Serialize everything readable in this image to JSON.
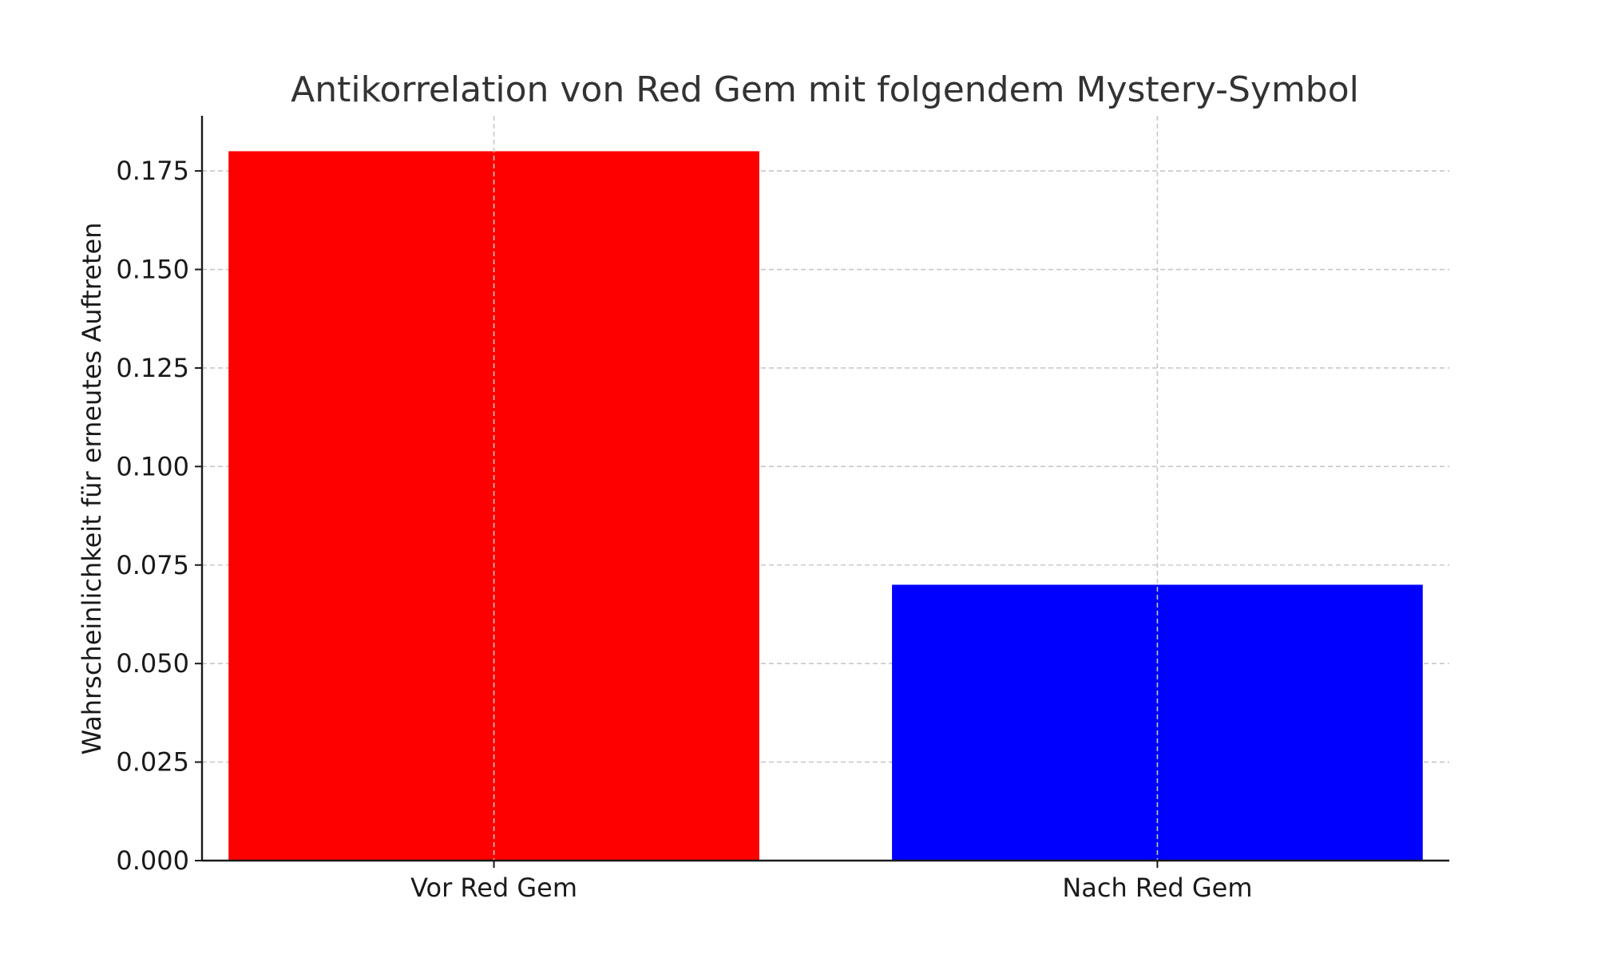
{
  "chart_data": {
    "type": "bar",
    "title": "Antikorrelation von Red Gem mit folgendem Mystery-Symbol",
    "xlabel": "",
    "ylabel": "Wahrscheinlichkeit für erneutes Auftreten",
    "categories": [
      "Vor Red Gem",
      "Nach Red Gem"
    ],
    "values": [
      0.18,
      0.07
    ],
    "colors": [
      "#ff0000",
      "#0000ff"
    ],
    "ylim": [
      0,
      0.189
    ],
    "yticks": [
      0.0,
      0.025,
      0.05,
      0.075,
      0.1,
      0.125,
      0.15,
      0.175
    ],
    "ytick_labels": [
      "0.000",
      "0.025",
      "0.050",
      "0.075",
      "0.100",
      "0.125",
      "0.150",
      "0.175"
    ],
    "grid": true,
    "grid_style": "dashed",
    "legend": "none"
  }
}
